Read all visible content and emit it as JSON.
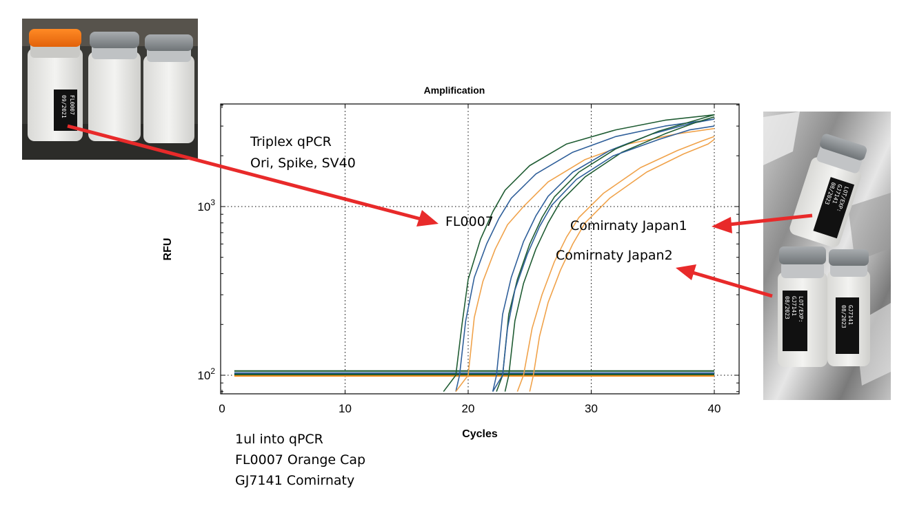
{
  "notes": {
    "top": [
      "Triplex qPCR",
      "Ori, Spike, SV40"
    ],
    "bottom": [
      "1ul into qPCR",
      "FL0007 Orange Cap",
      "GJ7141 Comirnaty"
    ]
  },
  "callouts": {
    "fl0007": "FL0007",
    "japan1": "Comirnaty Japan1",
    "japan2": "Comirnaty Japan2"
  },
  "photos": {
    "left_vial_label": [
      "FL0007",
      "09/2021"
    ],
    "right_vial_labels": [
      [
        "LOT/EXP:",
        "GJ7141",
        "08/2023"
      ],
      [
        "LOT/EXP:",
        "GJ7141",
        "08/2023"
      ],
      [
        "GJ7141",
        "08/2023"
      ]
    ]
  },
  "colors": {
    "green": "#1f5c33",
    "blue": "#2f5f9a",
    "orange": "#f0a24a",
    "arrow": "#e82a2a",
    "baseline_orange": "#f08c1c"
  },
  "chart_data": {
    "type": "line",
    "title": "Amplification",
    "xlabel": "Cycles",
    "ylabel": "RFU",
    "xlim": [
      0,
      42
    ],
    "ylim": [
      80,
      4000
    ],
    "yscale": "log",
    "xticks": [
      0,
      10,
      20,
      30,
      40
    ],
    "yticks": [
      {
        "base": "10",
        "exp": "2",
        "value": 100
      },
      {
        "base": "10",
        "exp": "3",
        "value": 1000
      }
    ],
    "grid": true,
    "series": [
      {
        "color": "green",
        "x": [
          18,
          19,
          19.5,
          20,
          21,
          22,
          23,
          25,
          28,
          32,
          36,
          40
        ],
        "y": [
          80,
          100,
          200,
          370,
          640,
          930,
          1250,
          1750,
          2350,
          2850,
          3250,
          3500
        ]
      },
      {
        "color": "blue",
        "x": [
          19,
          19.3,
          19.8,
          20.5,
          21.5,
          22.5,
          23.5,
          25.5,
          28.5,
          32,
          36,
          40
        ],
        "y": [
          80,
          100,
          210,
          380,
          600,
          850,
          1120,
          1560,
          2100,
          2600,
          3000,
          3300
        ]
      },
      {
        "color": "orange",
        "x": [
          19,
          20,
          20.5,
          21.2,
          22.2,
          23.2,
          24.5,
          26.5,
          29.5,
          33,
          37,
          40
        ],
        "y": [
          80,
          100,
          220,
          360,
          560,
          780,
          1000,
          1400,
          1900,
          2350,
          2700,
          2900
        ]
      },
      {
        "color": "blue",
        "x": [
          22,
          22.3,
          22.8,
          23.5,
          24.5,
          25.5,
          26.5,
          28.5,
          31.5,
          35,
          38,
          40
        ],
        "y": [
          80,
          100,
          230,
          380,
          620,
          880,
          1150,
          1600,
          2150,
          2700,
          3100,
          3300
        ]
      },
      {
        "color": "green",
        "x": [
          22.3,
          22.8,
          23.3,
          24,
          25,
          26,
          27,
          29,
          32,
          35.5,
          38.5,
          40
        ],
        "y": [
          80,
          100,
          230,
          370,
          600,
          860,
          1140,
          1600,
          2200,
          2800,
          3250,
          3500
        ]
      },
      {
        "color": "green",
        "x": [
          23,
          23.3,
          23.8,
          24.5,
          25.5,
          26.5,
          27.5,
          29.5,
          32.5,
          36,
          38.5,
          40
        ],
        "y": [
          80,
          100,
          210,
          350,
          560,
          800,
          1070,
          1500,
          2100,
          2700,
          3150,
          3400
        ]
      },
      {
        "color": "blue",
        "x": [
          22,
          22.8,
          23.2,
          23.8,
          24.8,
          25.8,
          26.8,
          28.8,
          31.8,
          35.5,
          38,
          40
        ],
        "y": [
          80,
          100,
          190,
          320,
          520,
          760,
          1020,
          1450,
          2000,
          2500,
          2850,
          3000
        ]
      },
      {
        "color": "orange",
        "x": [
          24,
          24.5,
          25.2,
          26,
          27,
          28,
          29,
          31,
          34,
          37,
          39,
          40
        ],
        "y": [
          80,
          100,
          190,
          300,
          470,
          660,
          860,
          1200,
          1700,
          2150,
          2450,
          2600
        ]
      },
      {
        "color": "orange",
        "x": [
          25,
          25.3,
          25.8,
          26.5,
          27.5,
          28.5,
          29.5,
          31.5,
          34.5,
          37.5,
          39.5,
          40
        ],
        "y": [
          80,
          100,
          170,
          270,
          420,
          600,
          800,
          1120,
          1600,
          2050,
          2350,
          2500
        ]
      }
    ],
    "baselines": [
      {
        "color": "green",
        "value": 106
      },
      {
        "color": "blue",
        "value": 103
      },
      {
        "color": "orange",
        "value": 100
      },
      {
        "color": "baseline_orange",
        "value": 99
      },
      {
        "color": "green",
        "value": 101
      }
    ],
    "x_start": 1,
    "x_end": 40
  }
}
